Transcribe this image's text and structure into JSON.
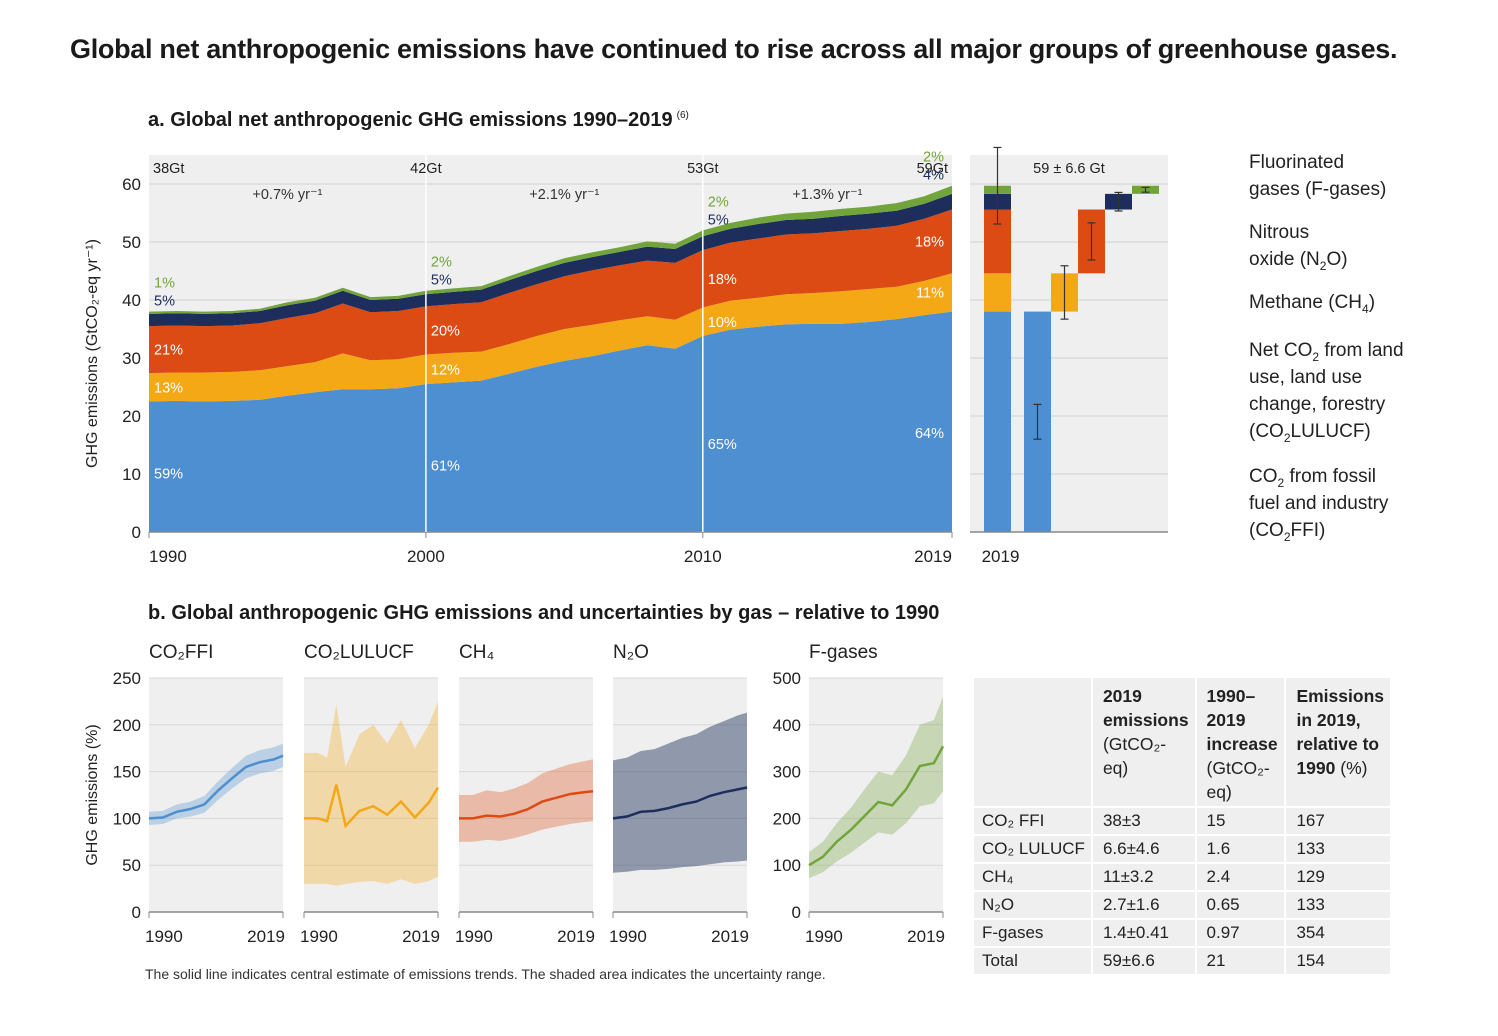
{
  "title": "Global net anthropogenic emissions have continued to rise across all major groups of greenhouse gases.",
  "panel_a_title": "a. Global net anthropogenic GHG emissions 1990–2019",
  "panel_a_note": "(6)",
  "panel_b_title": "b. Global anthropogenic GHG emissions and uncertainties by gas – relative to 1990",
  "footnote": "The solid line indicates central estimate of emissions trends. The shaded area indicates the uncertainty range.",
  "colors": {
    "co2ffi": "#4d8fd0",
    "co2lulucf": "#f5a816",
    "ch4": "#dc4b14",
    "n2o": "#1d2e5c",
    "fgas": "#72a43c",
    "panel_bg": "#efefef"
  },
  "legend": [
    {
      "key": "fgas",
      "label": "Fluorinated gases (F-gases)"
    },
    {
      "key": "n2o",
      "label": "Nitrous oxide (N₂O)"
    },
    {
      "key": "ch4",
      "label": "Methane (CH₄)"
    },
    {
      "key": "co2lulucf",
      "label": "Net CO₂ from land use, land use change, forestry (CO₂LULUCF)"
    },
    {
      "key": "co2ffi",
      "label": "CO₂ from fossil fuel and industry (CO₂FFI)"
    }
  ],
  "chart_data": [
    {
      "type": "area",
      "stacked": true,
      "ylabel": "GHG emissions (GtCO₂-eq yr⁻¹)",
      "ylim": [
        0,
        65
      ],
      "yticks": [
        0,
        10,
        20,
        30,
        40,
        50,
        60
      ],
      "xlim": [
        1990,
        2019
      ],
      "xticks": [
        1990,
        2000,
        2010,
        2019
      ],
      "x": [
        1990,
        1991,
        1992,
        1993,
        1994,
        1995,
        1996,
        1997,
        1998,
        1999,
        2000,
        2001,
        2002,
        2003,
        2004,
        2005,
        2006,
        2007,
        2008,
        2009,
        2010,
        2011,
        2012,
        2013,
        2014,
        2015,
        2016,
        2017,
        2018,
        2019
      ],
      "series": [
        {
          "key": "co2ffi",
          "values": [
            22.5,
            22.6,
            22.5,
            22.6,
            22.8,
            23.5,
            24.1,
            24.6,
            24.6,
            24.8,
            25.5,
            25.8,
            26.1,
            27.3,
            28.5,
            29.5,
            30.3,
            31.3,
            32.2,
            31.6,
            33.8,
            34.9,
            35.4,
            35.8,
            35.9,
            35.9,
            36.2,
            36.7,
            37.4,
            38.0
          ]
        },
        {
          "key": "co2lulucf",
          "values": [
            4.9,
            4.9,
            5.0,
            5.0,
            5.1,
            5.1,
            5.2,
            6.2,
            5.0,
            5.0,
            5.1,
            5.1,
            5.0,
            5.1,
            5.3,
            5.5,
            5.4,
            5.2,
            5.0,
            5.0,
            4.9,
            5.0,
            5.0,
            5.2,
            5.3,
            5.6,
            5.7,
            5.6,
            5.9,
            6.6
          ]
        },
        {
          "key": "ch4",
          "values": [
            8.1,
            8.1,
            8.0,
            8.0,
            8.1,
            8.3,
            8.4,
            8.6,
            8.3,
            8.3,
            8.3,
            8.4,
            8.5,
            8.8,
            8.9,
            9.1,
            9.4,
            9.5,
            9.6,
            9.8,
            9.9,
            10.0,
            10.2,
            10.3,
            10.3,
            10.4,
            10.4,
            10.5,
            10.7,
            11.0
          ]
        },
        {
          "key": "n2o",
          "values": [
            2.1,
            2.1,
            2.1,
            2.1,
            2.1,
            2.2,
            2.2,
            2.2,
            2.1,
            2.1,
            2.1,
            2.1,
            2.2,
            2.2,
            2.3,
            2.3,
            2.3,
            2.3,
            2.4,
            2.4,
            2.4,
            2.4,
            2.5,
            2.5,
            2.5,
            2.6,
            2.6,
            2.6,
            2.6,
            2.7
          ]
        },
        {
          "key": "fgas",
          "values": [
            0.4,
            0.4,
            0.4,
            0.4,
            0.4,
            0.5,
            0.5,
            0.5,
            0.5,
            0.5,
            0.6,
            0.6,
            0.6,
            0.7,
            0.7,
            0.8,
            0.8,
            0.8,
            0.9,
            0.9,
            1.0,
            1.0,
            1.1,
            1.1,
            1.2,
            1.2,
            1.2,
            1.3,
            1.3,
            1.4
          ]
        }
      ],
      "period_markers": [
        {
          "year": 1990,
          "total": "38Gt"
        },
        {
          "year": 2000,
          "total": "42Gt"
        },
        {
          "year": 2010,
          "total": "53Gt"
        },
        {
          "year": 2019,
          "total": "59Gt"
        }
      ],
      "growth_rates": [
        {
          "from": 1990,
          "to": 2000,
          "label": "+0.7% yr⁻¹"
        },
        {
          "from": 2000,
          "to": 2010,
          "label": "+2.1% yr⁻¹"
        },
        {
          "from": 2010,
          "to": 2019,
          "label": "+1.3% yr⁻¹"
        }
      ],
      "share_labels": [
        {
          "year": 1990,
          "co2ffi": "59%",
          "co2lulucf": "13%",
          "ch4": "21%",
          "n2o": "5%",
          "fgas": "1%"
        },
        {
          "year": 2000,
          "co2ffi": "61%",
          "co2lulucf": "12%",
          "ch4": "20%",
          "n2o": "5%",
          "fgas": "2%"
        },
        {
          "year": 2010,
          "co2ffi": "65%",
          "co2lulucf": "10%",
          "ch4": "18%",
          "n2o": "5%",
          "fgas": "2%"
        },
        {
          "year": 2019,
          "co2ffi": "64%",
          "co2lulucf": "11%",
          "ch4": "18%",
          "n2o": "4%",
          "fgas": "2%"
        }
      ]
    },
    {
      "type": "bar",
      "subtype": "waterfall",
      "title": "59 ± 6.6 Gt",
      "xlabel": "2019",
      "ylim": [
        0,
        65
      ],
      "stacked_total": [
        {
          "key": "co2ffi",
          "value": 38
        },
        {
          "key": "co2lulucf",
          "value": 6.6
        },
        {
          "key": "ch4",
          "value": 11
        },
        {
          "key": "n2o",
          "value": 2.7
        },
        {
          "key": "fgas",
          "value": 1.4
        }
      ],
      "total_uncertainty": 6.6,
      "waterfall": [
        {
          "key": "co2ffi",
          "value": 38,
          "uncertainty": 3
        },
        {
          "key": "co2lulucf",
          "value": 6.6,
          "uncertainty": 4.6
        },
        {
          "key": "ch4",
          "value": 11,
          "uncertainty": 3.2
        },
        {
          "key": "n2o",
          "value": 2.7,
          "uncertainty": 1.6
        },
        {
          "key": "fgas",
          "value": 1.4,
          "uncertainty": 0.41
        }
      ]
    },
    {
      "type": "line",
      "subtype": "small-multiples-with-uncertainty",
      "ylabel": "GHG emissions (%)",
      "xticks": [
        1990,
        2019
      ],
      "panels": [
        {
          "key": "co2ffi",
          "title": "CO₂FFI",
          "ylim": [
            0,
            250
          ],
          "yticks": [
            0,
            50,
            100,
            150,
            200,
            250
          ],
          "x": [
            1990,
            1993,
            1996,
            1999,
            2002,
            2005,
            2008,
            2011,
            2014,
            2017,
            2019
          ],
          "central": [
            100,
            101,
            107,
            110,
            115,
            130,
            143,
            155,
            160,
            163,
            167
          ],
          "lower": [
            93,
            94,
            100,
            102,
            106,
            120,
            132,
            143,
            148,
            151,
            155
          ],
          "upper": [
            107,
            108,
            115,
            118,
            124,
            140,
            154,
            167,
            173,
            176,
            180
          ]
        },
        {
          "key": "co2lulucf",
          "title": "CO₂LULUCF",
          "ylim": [
            0,
            250
          ],
          "x": [
            1990,
            1993,
            1995,
            1997,
            1999,
            2002,
            2005,
            2008,
            2011,
            2014,
            2017,
            2019
          ],
          "central": [
            100,
            100,
            97,
            136,
            92,
            108,
            113,
            104,
            118,
            101,
            117,
            133
          ],
          "lower": [
            30,
            30,
            30,
            28,
            30,
            32,
            33,
            30,
            35,
            30,
            33,
            38
          ],
          "upper": [
            170,
            170,
            165,
            222,
            155,
            190,
            200,
            180,
            205,
            175,
            200,
            225
          ]
        },
        {
          "key": "ch4",
          "title": "CH₄",
          "ylim": [
            0,
            250
          ],
          "x": [
            1990,
            1993,
            1996,
            1999,
            2002,
            2005,
            2008,
            2011,
            2014,
            2017,
            2019
          ],
          "central": [
            100,
            100,
            103,
            102,
            105,
            110,
            118,
            122,
            126,
            128,
            129
          ],
          "lower": [
            75,
            75,
            77,
            76,
            79,
            83,
            88,
            91,
            94,
            96,
            97
          ],
          "upper": [
            125,
            125,
            130,
            128,
            132,
            138,
            148,
            153,
            158,
            161,
            163
          ]
        },
        {
          "key": "n2o",
          "title": "N₂O",
          "ylim": [
            0,
            250
          ],
          "x": [
            1990,
            1993,
            1996,
            1999,
            2002,
            2005,
            2008,
            2011,
            2014,
            2017,
            2019
          ],
          "central": [
            100,
            102,
            107,
            108,
            111,
            115,
            118,
            124,
            128,
            131,
            133
          ],
          "lower": [
            42,
            43,
            45,
            45,
            46,
            48,
            49,
            51,
            53,
            54,
            55
          ],
          "upper": [
            162,
            165,
            172,
            174,
            180,
            186,
            190,
            198,
            204,
            210,
            213
          ]
        },
        {
          "key": "fgas",
          "title": "F-gases",
          "ylim": [
            0,
            500
          ],
          "yticks": [
            0,
            100,
            200,
            300,
            400,
            500
          ],
          "x": [
            1990,
            1993,
            1996,
            1999,
            2002,
            2005,
            2008,
            2011,
            2014,
            2017,
            2019
          ],
          "central": [
            100,
            118,
            150,
            175,
            205,
            235,
            228,
            262,
            312,
            318,
            354
          ],
          "lower": [
            72,
            85,
            108,
            126,
            148,
            170,
            165,
            190,
            226,
            232,
            258
          ],
          "upper": [
            128,
            150,
            190,
            222,
            262,
            300,
            292,
            335,
            400,
            410,
            460
          ]
        }
      ]
    },
    {
      "type": "table",
      "columns": [
        "",
        "2019 emissions (GtCO₂-eq)",
        "1990–2019 increase (GtCO₂-eq)",
        "Emissions in 2019, relative to 1990 (%)"
      ],
      "rows": [
        [
          "CO₂ FFI",
          "38±3",
          "15",
          "167"
        ],
        [
          "CO₂ LULUCF",
          "6.6±4.6",
          "1.6",
          "133"
        ],
        [
          "CH₄",
          "11±3.2",
          "2.4",
          "129"
        ],
        [
          "N₂O",
          "2.7±1.6",
          "0.65",
          "133"
        ],
        [
          "F-gases",
          "1.4±0.41",
          "0.97",
          "354"
        ],
        [
          "Total",
          "59±6.6",
          "21",
          "154"
        ]
      ]
    }
  ],
  "table_header": {
    "col1_bold": "2019 emissions",
    "col1_unit": "(GtCO₂-eq)",
    "col2_bold": "1990–2019 increase",
    "col2_unit": "(GtCO₂-eq)",
    "col3_bold": "Emissions in 2019, relative to 1990",
    "col3_unit": "(%)"
  }
}
